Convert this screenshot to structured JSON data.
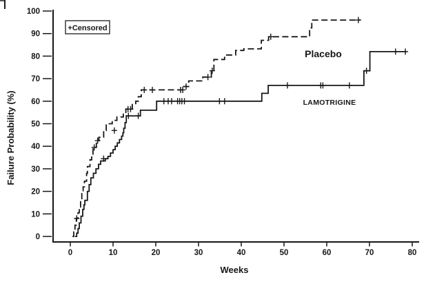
{
  "chart_data": {
    "type": "line",
    "subtype": "kaplan-meier-step-curves",
    "title": "",
    "xlabel": "Weeks",
    "ylabel": "Failure Probability (%)",
    "legend_label": "+Censored",
    "legend_position": "top-left-inside",
    "grid": false,
    "xlim": [
      0,
      80
    ],
    "ylim": [
      0,
      100
    ],
    "x_ticks": [
      0,
      10,
      20,
      30,
      40,
      50,
      60,
      70,
      80
    ],
    "y_ticks": [
      0,
      10,
      20,
      30,
      40,
      50,
      60,
      70,
      80,
      90,
      100
    ],
    "colors": {
      "line": "#161616",
      "background": "#ffffff"
    },
    "series": [
      {
        "name": "Placebo",
        "line_style": "dashed",
        "end_week": 67.8,
        "steps": [
          [
            0.5,
            0
          ],
          [
            0.8,
            2
          ],
          [
            1.1,
            5
          ],
          [
            1.4,
            8
          ],
          [
            1.8,
            10.5
          ],
          [
            2.1,
            13
          ],
          [
            2.4,
            16
          ],
          [
            2.7,
            19
          ],
          [
            3.0,
            22
          ],
          [
            3.3,
            24.5
          ],
          [
            3.8,
            28
          ],
          [
            4.0,
            31
          ],
          [
            4.6,
            34
          ],
          [
            5.0,
            36.5
          ],
          [
            5.3,
            39.5
          ],
          [
            6.1,
            42.5
          ],
          [
            6.7,
            44
          ],
          [
            7.8,
            47
          ],
          [
            8.4,
            50
          ],
          [
            9.8,
            51.5
          ],
          [
            10.9,
            53
          ],
          [
            12.4,
            54.5
          ],
          [
            13.0,
            56.5
          ],
          [
            14.5,
            58.5
          ],
          [
            15.3,
            60
          ],
          [
            15.9,
            62
          ],
          [
            16.6,
            65
          ],
          [
            26.5,
            66.5
          ],
          [
            27.7,
            69
          ],
          [
            31.0,
            70.7
          ],
          [
            33.0,
            73.5
          ],
          [
            33.6,
            78.5
          ],
          [
            36.1,
            80.5
          ],
          [
            38.7,
            82.5
          ],
          [
            40.6,
            83.2
          ],
          [
            44.7,
            87
          ],
          [
            46.4,
            88.6
          ],
          [
            56.0,
            92.5
          ],
          [
            56.5,
            96
          ]
        ],
        "censors": [
          [
            1.5,
            8
          ],
          [
            5.6,
            39.5
          ],
          [
            6.4,
            42.5
          ],
          [
            10.3,
            47
          ],
          [
            13.5,
            56.5
          ],
          [
            14.1,
            56.5
          ],
          [
            17.3,
            65
          ],
          [
            19.2,
            65
          ],
          [
            25.8,
            65
          ],
          [
            26.3,
            65
          ],
          [
            27.1,
            66.5
          ],
          [
            32.2,
            70.7
          ],
          [
            33.2,
            73.5
          ],
          [
            46.9,
            88.6
          ],
          [
            67.4,
            96
          ]
        ]
      },
      {
        "name": "LAMOTRIGINE",
        "line_style": "solid",
        "end_week": 78.6,
        "steps": [
          [
            1.1,
            0
          ],
          [
            1.5,
            1.5
          ],
          [
            1.8,
            3.5
          ],
          [
            2.1,
            6
          ],
          [
            2.5,
            9
          ],
          [
            2.9,
            12
          ],
          [
            3.2,
            14
          ],
          [
            3.4,
            16
          ],
          [
            4.0,
            20
          ],
          [
            4.4,
            23
          ],
          [
            4.8,
            26
          ],
          [
            5.4,
            28
          ],
          [
            6.0,
            30
          ],
          [
            6.6,
            32
          ],
          [
            7.1,
            33.5
          ],
          [
            8.2,
            34.5
          ],
          [
            8.8,
            35.5
          ],
          [
            9.4,
            37
          ],
          [
            10.0,
            38.5
          ],
          [
            10.5,
            40
          ],
          [
            11.0,
            41.5
          ],
          [
            11.5,
            43
          ],
          [
            12.0,
            44.5
          ],
          [
            12.3,
            46
          ],
          [
            12.5,
            48
          ],
          [
            12.8,
            50.5
          ],
          [
            13.1,
            53.5
          ],
          [
            16.4,
            56
          ],
          [
            20.2,
            60
          ],
          [
            44.8,
            63.5
          ],
          [
            46.3,
            67
          ],
          [
            68.7,
            73.5
          ],
          [
            70.1,
            82
          ]
        ],
        "censors": [
          [
            7.8,
            34.5
          ],
          [
            13.6,
            53.5
          ],
          [
            15.9,
            53.5
          ],
          [
            21.9,
            60
          ],
          [
            22.9,
            60
          ],
          [
            23.7,
            60
          ],
          [
            25.1,
            60
          ],
          [
            25.6,
            60
          ],
          [
            26.1,
            60
          ],
          [
            26.7,
            60
          ],
          [
            34.9,
            60
          ],
          [
            36.1,
            60
          ],
          [
            50.8,
            67
          ],
          [
            58.6,
            67
          ],
          [
            59.1,
            67
          ],
          [
            65.3,
            67
          ],
          [
            69.3,
            73.5
          ],
          [
            76.1,
            82
          ],
          [
            78.4,
            82
          ]
        ]
      }
    ]
  }
}
